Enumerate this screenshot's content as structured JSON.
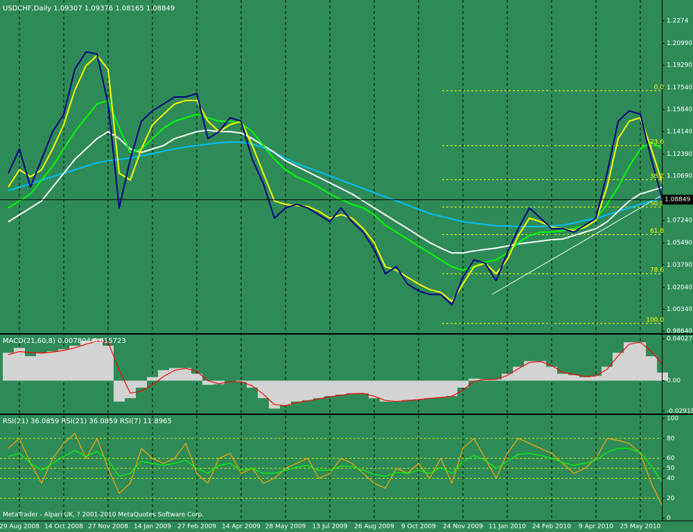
{
  "chart_data": [
    {
      "type": "line",
      "title": "USDCHF,Daily  1.09307 1.09376 1.08165 1.08849",
      "ylim": [
        0.9848,
        1.2419
      ],
      "yticks": [
        1.2274,
        {
          "value": 1.2099,
          "label": "1.20990"
        },
        {
          "value": 1.1929,
          "label": "1.19290"
        },
        {
          "value": 1.1754,
          "label": "1.17540"
        },
        {
          "value": 1.1584,
          "label": "1.15840"
        },
        {
          "value": 1.1414,
          "label": "1.14140"
        },
        {
          "value": 1.1239,
          "label": "1.12390"
        },
        {
          "value": 1.1069,
          "label": "1.10690"
        },
        {
          "value": 1.0724,
          "label": "1.07240"
        },
        {
          "value": 1.0549,
          "label": "1.05490"
        },
        {
          "value": 1.0379,
          "label": "1.03790"
        },
        {
          "value": 1.0204,
          "label": "1.02040"
        },
        {
          "value": 1.0034,
          "label": "1.00340"
        },
        {
          "value": 0.9864,
          "label": "0.98640"
        }
      ],
      "last": 1.08849,
      "fibonacci": {
        "high": 1.1731,
        "low": 0.9923,
        "color": "#ffff00",
        "levels": [
          {
            "value": 0,
            "label": "0.0"
          },
          23.6,
          38.2,
          {
            "value": 50,
            "label": "50.0"
          },
          61.8,
          78.6,
          {
            "value": 100,
            "label": "100.0"
          }
        ]
      },
      "series": [
        {
          "color": "#00bfff",
          "values": [
            1.0955,
            1.0982,
            1.1009,
            1.1036,
            1.1063,
            1.109,
            1.1117,
            1.1144,
            1.1171,
            1.1187,
            1.1198,
            1.1208,
            1.1225,
            1.1241,
            1.1262,
            1.1278,
            1.1294,
            1.1305,
            1.1316,
            1.1327,
            1.1332,
            1.1332,
            1.1316,
            1.1289,
            1.1251,
            1.1208,
            1.1165,
            1.1133,
            1.1101,
            1.1068,
            1.1036,
            1.1004,
            1.0972,
            1.0939,
            1.0907,
            1.0875,
            1.0843,
            1.081,
            1.0778,
            1.0756,
            1.0735,
            1.0713,
            1.0703,
            1.0692,
            1.0681,
            1.0681,
            1.0676,
            1.0676,
            1.0676,
            1.0681,
            1.0686,
            1.0703,
            1.0724,
            1.074,
            1.0767,
            1.0794,
            1.0821,
            1.0848,
            1.0875,
            1.0891
          ]
        },
        {
          "color": "#ffffff",
          "values": [
            1.0713,
            1.0767,
            1.0821,
            1.0875,
            1.0982,
            1.109,
            1.1198,
            1.1278,
            1.1359,
            1.1413,
            1.1359,
            1.1278,
            1.1251,
            1.1278,
            1.1305,
            1.1359,
            1.1386,
            1.1413,
            1.1424,
            1.1413,
            1.1413,
            1.1402,
            1.1359,
            1.1305,
            1.1251,
            1.1187,
            1.1144,
            1.1101,
            1.1058,
            1.1015,
            1.0972,
            1.0929,
            1.0875,
            1.0821,
            1.0767,
            1.0713,
            1.066,
            1.0606,
            1.0552,
            1.0509,
            1.0471,
            1.0471,
            1.0487,
            1.0498,
            1.0509,
            1.0525,
            1.0541,
            1.0552,
            1.0563,
            1.0574,
            1.0579,
            1.0606,
            1.0633,
            1.066,
            1.0713,
            1.0794,
            1.0875,
            1.0929,
            1.0955,
            1.0982
          ]
        },
        {
          "color": "#00ff00",
          "values": [
            1.0821,
            1.0875,
            1.0929,
            1.1036,
            1.1144,
            1.1278,
            1.1413,
            1.1521,
            1.1628,
            1.1655,
            1.144,
            1.1251,
            1.1278,
            1.1359,
            1.144,
            1.1494,
            1.1521,
            1.1548,
            1.1521,
            1.1494,
            1.1494,
            1.1478,
            1.1413,
            1.1305,
            1.1198,
            1.1117,
            1.1063,
            1.1025,
            1.0982,
            1.0929,
            1.0886,
            1.0848,
            1.0821,
            1.0767,
            1.0686,
            1.0633,
            1.0579,
            1.0525,
            1.0471,
            1.0417,
            1.0364,
            1.0337,
            1.0364,
            1.0401,
            1.0417,
            1.0471,
            1.0552,
            1.0606,
            1.0633,
            1.0633,
            1.0643,
            1.066,
            1.0686,
            1.074,
            1.0848,
            1.0982,
            1.1144,
            1.1278,
            1.1332,
            1.1278
          ]
        },
        {
          "color": "#ffff00",
          "values": [
            1.0983,
            1.1117,
            1.1063,
            1.1117,
            1.1279,
            1.1467,
            1.1736,
            1.1924,
            1.2005,
            1.1897,
            1.109,
            1.1037,
            1.1279,
            1.1467,
            1.1548,
            1.1628,
            1.1655,
            1.1655,
            1.1494,
            1.1413,
            1.1467,
            1.1494,
            1.1306,
            1.109,
            1.0875,
            1.0848,
            1.0838,
            1.0832,
            1.0794,
            1.0741,
            1.0768,
            1.0741,
            1.066,
            1.0552,
            1.0364,
            1.0337,
            1.0283,
            1.023,
            1.0187,
            1.0165,
            1.0095,
            1.023,
            1.0364,
            1.0391,
            1.031,
            1.0418,
            1.0606,
            1.0741,
            1.0714,
            1.0671,
            1.066,
            1.0644,
            1.0671,
            1.0725,
            1.0983,
            1.1359,
            1.1494,
            1.1521,
            1.1279,
            1.101
          ]
        },
        {
          "color": "#000080",
          "values": [
            1.109,
            1.1279,
            1.0983,
            1.1198,
            1.1413,
            1.1548,
            1.1897,
            1.2032,
            1.2016,
            1.1628,
            1.0821,
            1.1198,
            1.1494,
            1.1575,
            1.1628,
            1.1682,
            1.1682,
            1.1709,
            1.1359,
            1.1413,
            1.1521,
            1.1494,
            1.1198,
            1.101,
            1.0741,
            1.0821,
            1.0848,
            1.0821,
            1.0768,
            1.0714,
            1.0821,
            1.0714,
            1.0633,
            1.0499,
            1.031,
            1.0364,
            1.023,
            1.0176,
            1.0149,
            1.0149,
            1.0068,
            1.0283,
            1.0418,
            1.0391,
            1.0256,
            1.0472,
            1.066,
            1.0821,
            1.0741,
            1.066,
            1.066,
            1.0633,
            1.0687,
            1.0741,
            1.109,
            1.1494,
            1.1575,
            1.1548,
            1.1198,
            1.08849
          ]
        }
      ]
    },
    {
      "type": "macd",
      "title": "MACD(21,60,8) 0.007804 0.015723",
      "ylim": [
        -0.0316,
        0.0443
      ],
      "yticks": [
        0.040271,
        {
          "value": 0,
          "label": "0.00"
        },
        -0.02918
      ],
      "histogram": {
        "color": "#d3d3d3",
        "values": [
          0.0268,
          0.0315,
          0.0235,
          0.0268,
          0.0282,
          0.0302,
          0.0336,
          0.0382,
          0.0403,
          0.0336,
          -0.0201,
          -0.0168,
          -0.0067,
          0.0034,
          0.0101,
          0.0121,
          0.0121,
          0.0067,
          -0.004,
          -0.0034,
          0,
          -0.0013,
          -0.0067,
          -0.0168,
          -0.0268,
          -0.0235,
          -0.0201,
          -0.0188,
          -0.0168,
          -0.0148,
          -0.0134,
          -0.0121,
          -0.0121,
          -0.0168,
          -0.0201,
          -0.0201,
          -0.0188,
          -0.0181,
          -0.0168,
          -0.0161,
          -0.0148,
          -0.0067,
          0.002,
          0.0013,
          0.0013,
          0.0067,
          0.0134,
          0.0188,
          0.0188,
          0.0134,
          0.0067,
          0.0054,
          0.0034,
          0.0047,
          0.0134,
          0.0268,
          0.0369,
          0.0369,
          0.0235,
          0.007804
        ]
      },
      "signal": {
        "color": "#ff0000",
        "values": [
          0.025,
          0.028,
          0.027,
          0.0265,
          0.0275,
          0.029,
          0.0315,
          0.035,
          0.038,
          0.037,
          0.01,
          -0.012,
          -0.01,
          -0.004,
          0.004,
          0.01,
          0.0118,
          0.009,
          0,
          -0.003,
          -0.001,
          -0.001,
          -0.005,
          -0.013,
          -0.023,
          -0.024,
          -0.021,
          -0.0195,
          -0.0175,
          -0.0155,
          -0.014,
          -0.0125,
          -0.0122,
          -0.015,
          -0.019,
          -0.02,
          -0.019,
          -0.0182,
          -0.017,
          -0.0162,
          -0.015,
          -0.009,
          -0.0005,
          0.001,
          0.0012,
          0.005,
          0.0115,
          0.0175,
          0.0185,
          0.0145,
          0.008,
          0.006,
          0.004,
          0.0045,
          0.011,
          0.024,
          0.035,
          0.037,
          0.028,
          0.015723
        ]
      }
    },
    {
      "type": "line",
      "title": "RSI(21) 36.0859  RSI(21) 36.0859  RSI(7) 11.8965",
      "annotation": "MetaTrader - Alpari UK, ? 2001-2010 MetaQuotes Software Corp.",
      "ylim": [
        -2,
        103.5
      ],
      "yticks": [
        0,
        20,
        40,
        50,
        60,
        80,
        100
      ],
      "levels": [
        20,
        40,
        50,
        60,
        80
      ],
      "level_color": "#ffff00",
      "categories": [
        null,
        "29 Aug 2008",
        null,
        null,
        null,
        "14 Oct 2008",
        null,
        null,
        null,
        "27 Nov 2008",
        null,
        null,
        null,
        "14 Jan 2009",
        null,
        null,
        null,
        "27 Feb 2009",
        null,
        null,
        null,
        "14 Apr 2009",
        null,
        null,
        null,
        "28 May 2009",
        null,
        null,
        null,
        "13 Jul 2009",
        null,
        null,
        null,
        "26 Aug 2009",
        null,
        null,
        null,
        "9 Oct 2009",
        null,
        null,
        null,
        "24 Nov 2009",
        null,
        null,
        null,
        "11 Jan 2010",
        null,
        null,
        null,
        "24 Feb 2010",
        null,
        null,
        null,
        "9 Apr 2010",
        null,
        null,
        null,
        "25 May 2010",
        null,
        null
      ],
      "grid": true,
      "series": [
        {
          "color": "#ffa500",
          "values": [
            70,
            80,
            55,
            35,
            60,
            75,
            85,
            60,
            80,
            50,
            25,
            35,
            70,
            60,
            55,
            60,
            75,
            45,
            35,
            60,
            65,
            45,
            50,
            35,
            40,
            50,
            55,
            60,
            40,
            45,
            60,
            55,
            45,
            35,
            30,
            50,
            45,
            55,
            40,
            60,
            35,
            70,
            80,
            60,
            40,
            65,
            80,
            75,
            70,
            65,
            55,
            45,
            50,
            60,
            80,
            78,
            75,
            65,
            35,
            11.8965
          ]
        },
        {
          "color": "#00ff00",
          "values": [
            62,
            65,
            55,
            48,
            55,
            62,
            68,
            62,
            67,
            58,
            42,
            45,
            57,
            55,
            53,
            55,
            58,
            50,
            45,
            53,
            55,
            48,
            50,
            45,
            45,
            48,
            51,
            53,
            48,
            48,
            52,
            52,
            48,
            44,
            42,
            46,
            45,
            48,
            45,
            51,
            45,
            57,
            63,
            58,
            50,
            57,
            64,
            65,
            63,
            60,
            56,
            53,
            55,
            58,
            66,
            70,
            70,
            66,
            52,
            36.0859
          ]
        }
      ]
    }
  ]
}
